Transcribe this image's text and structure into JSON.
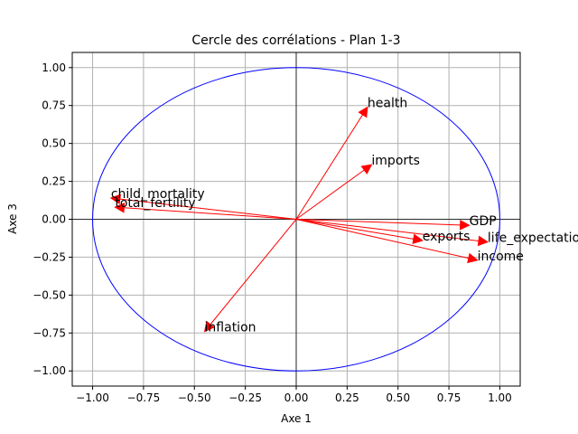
{
  "chart_data": {
    "type": "scatter",
    "title": "Cercle des corrélations - Plan 1-3",
    "xlabel": "Axe 1",
    "ylabel": "Axe 3",
    "xlim": [
      -1.1,
      1.1
    ],
    "ylim": [
      -1.1,
      1.1
    ],
    "grid": true,
    "xticks": [
      -1.0,
      -0.75,
      -0.5,
      -0.25,
      0.0,
      0.25,
      0.5,
      0.75,
      1.0
    ],
    "yticks": [
      -1.0,
      -0.75,
      -0.5,
      -0.25,
      0.0,
      0.25,
      0.5,
      0.75,
      1.0
    ],
    "xtick_labels": [
      "−1.00",
      "−0.75",
      "−0.50",
      "−0.25",
      "0.00",
      "0.25",
      "0.50",
      "0.75",
      "1.00"
    ],
    "ytick_labels": [
      "−1.00",
      "−0.75",
      "−0.50",
      "−0.25",
      "0.00",
      "0.25",
      "0.50",
      "0.75",
      "1.00"
    ],
    "circle": {
      "radius": 1.0,
      "color": "#0000ff"
    },
    "arrow_color": "#ff0000",
    "variables": [
      {
        "name": "health",
        "x": 0.35,
        "y": 0.74
      },
      {
        "name": "imports",
        "x": 0.37,
        "y": 0.36
      },
      {
        "name": "child_mortality",
        "x": -0.91,
        "y": 0.14
      },
      {
        "name": "total_fertility",
        "x": -0.89,
        "y": 0.08
      },
      {
        "name": "GDP",
        "x": 0.85,
        "y": -0.04
      },
      {
        "name": "exports",
        "x": 0.62,
        "y": -0.14
      },
      {
        "name": "life_expectation",
        "x": 0.94,
        "y": -0.15
      },
      {
        "name": "income",
        "x": 0.89,
        "y": -0.27
      },
      {
        "name": "inflation",
        "x": -0.45,
        "y": -0.74
      }
    ]
  }
}
